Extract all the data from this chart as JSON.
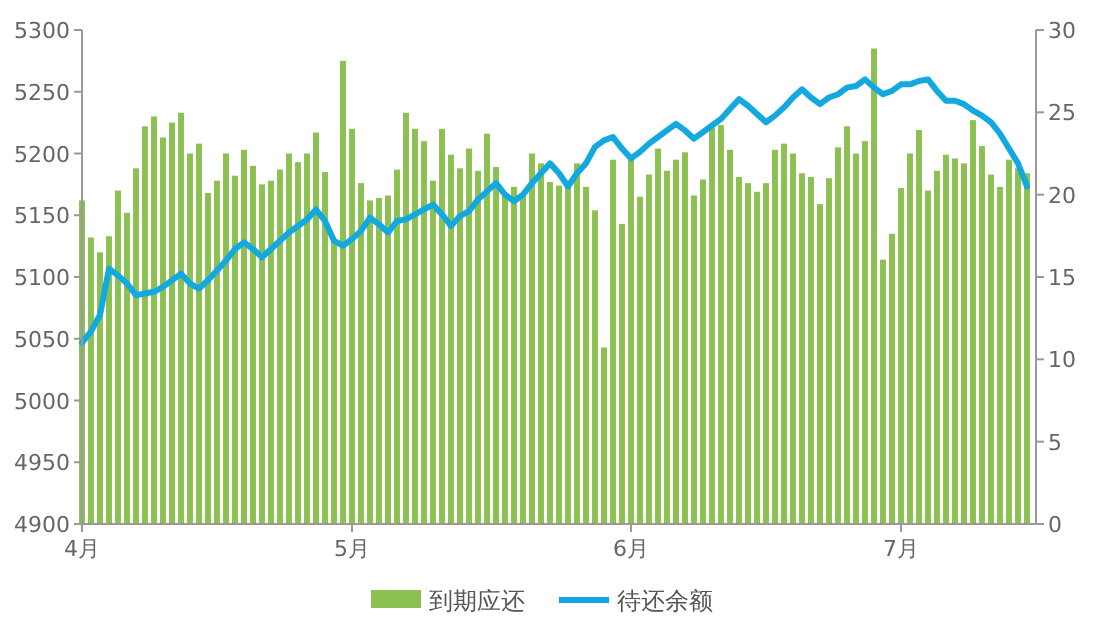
{
  "chart_data": {
    "type": "bar",
    "legend": "bottom",
    "line_style": "solid",
    "marker": "none",
    "xlim": [
      "--04-01",
      "--07-16"
    ],
    "xticks": [
      {
        "value": "--04-01",
        "label": "4月"
      },
      {
        "value": "--05-01",
        "label": "5月"
      },
      {
        "value": "--06-01",
        "label": "6月"
      },
      {
        "value": "--07-01",
        "label": "7月"
      }
    ],
    "ylim": [
      4900,
      5300
    ],
    "yticks": [
      4900,
      4950,
      5000,
      5050,
      5100,
      5150,
      5200,
      5250,
      5300
    ],
    "y2lim": [
      0,
      30
    ],
    "y2ticks": [
      0,
      5,
      10,
      15,
      20,
      25,
      30
    ],
    "x": [
      "--04-01",
      "--04-02",
      "--04-03",
      "--04-04",
      "--04-05",
      "--04-06",
      "--04-07",
      "--04-08",
      "--04-09",
      "--04-10",
      "--04-11",
      "--04-12",
      "--04-13",
      "--04-14",
      "--04-15",
      "--04-16",
      "--04-17",
      "--04-18",
      "--04-19",
      "--04-20",
      "--04-21",
      "--04-22",
      "--04-23",
      "--04-24",
      "--04-25",
      "--04-26",
      "--04-27",
      "--04-28",
      "--04-29",
      "--04-30",
      "--05-01",
      "--05-02",
      "--05-03",
      "--05-04",
      "--05-05",
      "--05-06",
      "--05-07",
      "--05-08",
      "--05-09",
      "--05-10",
      "--05-11",
      "--05-12",
      "--05-13",
      "--05-14",
      "--05-15",
      "--05-16",
      "--05-17",
      "--05-18",
      "--05-19",
      "--05-20",
      "--05-21",
      "--05-22",
      "--05-23",
      "--05-24",
      "--05-25",
      "--05-26",
      "--05-27",
      "--05-28",
      "--05-29",
      "--05-30",
      "--05-31",
      "--06-01",
      "--06-02",
      "--06-03",
      "--06-04",
      "--06-05",
      "--06-06",
      "--06-07",
      "--06-08",
      "--06-09",
      "--06-10",
      "--06-11",
      "--06-12",
      "--06-13",
      "--06-14",
      "--06-15",
      "--06-16",
      "--06-17",
      "--06-18",
      "--06-19",
      "--06-20",
      "--06-21",
      "--06-22",
      "--06-23",
      "--06-24",
      "--06-25",
      "--06-26",
      "--06-27",
      "--06-28",
      "--06-29",
      "--06-30",
      "--07-01",
      "--07-02",
      "--07-03",
      "--07-04",
      "--07-05",
      "--07-06",
      "--07-07",
      "--07-08",
      "--07-09",
      "--07-10",
      "--07-11",
      "--07-12",
      "--07-13",
      "--07-14",
      "--07-15"
    ],
    "series": [
      {
        "name": "到期应还",
        "color": "#8cc152",
        "values": [
          5162,
          5132,
          5120,
          5133,
          5170,
          5152,
          5188,
          5222,
          5230,
          5213,
          5225,
          5233,
          5200,
          5208,
          5168,
          5178,
          5200,
          5182,
          5203,
          5190,
          5175,
          5178,
          5187,
          5200,
          5193,
          5200,
          5217,
          5185,
          5130,
          5275,
          5220,
          5176,
          5162,
          5164,
          5166,
          5187,
          5233,
          5220,
          5210,
          5178,
          5220,
          5199,
          5188,
          5204,
          5186,
          5216,
          5189,
          5168,
          5173,
          5166,
          5200,
          5192,
          5177,
          5174,
          5176,
          5192,
          5173,
          5154,
          5043,
          5195,
          5143,
          5195,
          5165,
          5183,
          5204,
          5186,
          5195,
          5201,
          5166,
          5179,
          5221,
          5223,
          5203,
          5181,
          5176,
          5169,
          5176,
          5203,
          5208,
          5200,
          5184,
          5181,
          5159,
          5180,
          5205,
          5222,
          5200,
          5210,
          5285,
          5114,
          5135,
          5172,
          5200,
          5219,
          5170,
          5186,
          5199,
          5196,
          5192,
          5227,
          5206,
          5183,
          5173,
          5195,
          5188,
          5184
        ]
      },
      {
        "name": "待还余额",
        "type": "line",
        "axis": "y2",
        "color": "#13a8e0",
        "values": [
          11.0,
          11.7,
          12.7,
          15.5,
          15.1,
          14.6,
          13.9,
          14.0,
          14.1,
          14.4,
          14.8,
          15.2,
          14.6,
          14.3,
          14.8,
          15.4,
          16.0,
          16.7,
          17.1,
          16.7,
          16.2,
          16.7,
          17.2,
          17.7,
          18.1,
          18.5,
          19.1,
          18.4,
          17.2,
          16.9,
          17.3,
          17.8,
          18.6,
          18.2,
          17.7,
          18.4,
          18.5,
          18.8,
          19.1,
          19.4,
          18.8,
          18.1,
          18.7,
          19.0,
          19.7,
          20.2,
          20.7,
          20.0,
          19.6,
          20.0,
          20.7,
          21.3,
          21.9,
          21.3,
          20.5,
          21.3,
          21.9,
          22.9,
          23.3,
          23.5,
          22.8,
          22.2,
          22.6,
          23.1,
          23.5,
          23.9,
          24.3,
          23.9,
          23.4,
          23.8,
          24.2,
          24.6,
          25.2,
          25.8,
          25.4,
          24.9,
          24.4,
          24.8,
          25.3,
          25.9,
          26.4,
          25.9,
          25.5,
          25.9,
          26.1,
          26.5,
          26.6,
          27.0,
          26.5,
          26.1,
          26.3,
          26.7,
          26.7,
          26.9,
          27.0,
          26.3,
          25.7,
          25.7,
          25.5,
          25.1,
          24.8,
          24.4,
          23.7,
          22.8,
          21.9,
          20.5
        ]
      }
    ]
  }
}
